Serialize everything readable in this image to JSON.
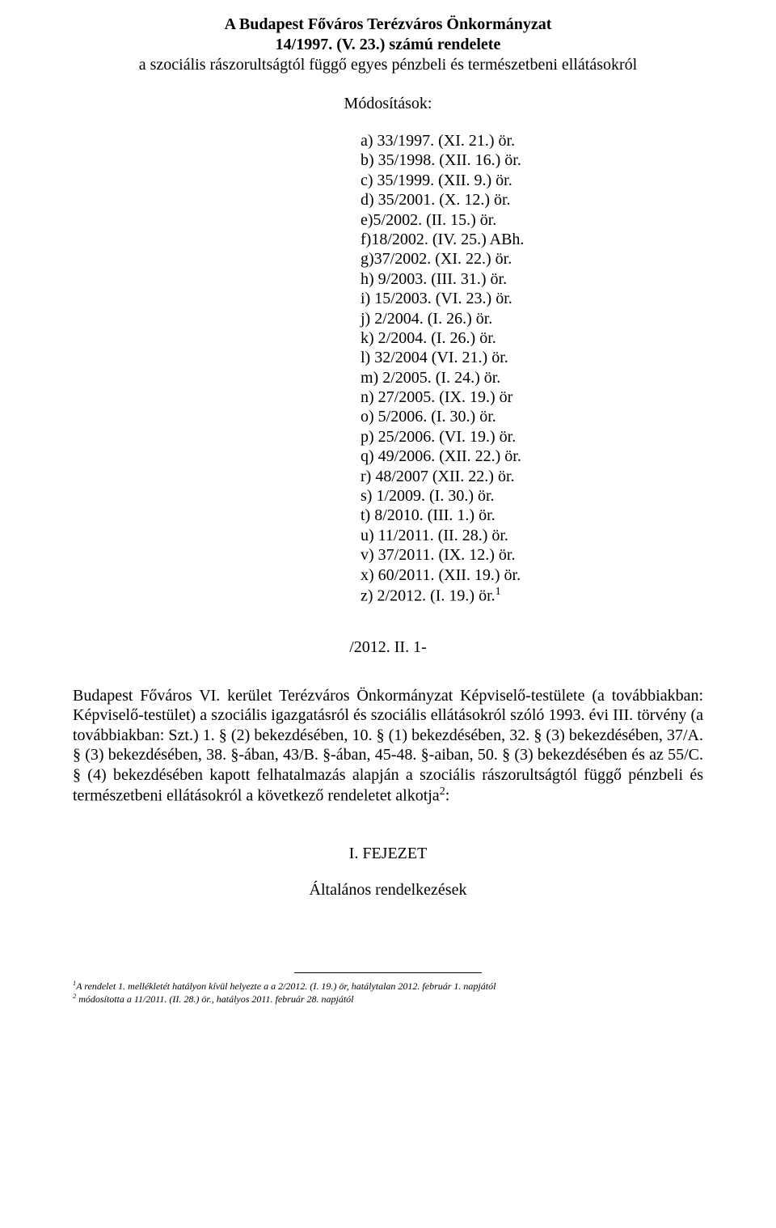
{
  "title_bold_line1": "A Budapest Főváros Terézváros Önkormányzat",
  "title_bold_line2": "14/1997. (V. 23.) számú rendelete",
  "title_normal_line": "a szociális rászorultságtól függő egyes pénzbeli és természetbeni ellátásokról",
  "modositasok_label": "Módosítások:",
  "amendments": [
    "a) 33/1997. (XI. 21.) ör.",
    "b) 35/1998. (XII. 16.) ör.",
    "c) 35/1999. (XII. 9.) ör.",
    "d) 35/2001. (X. 12.) ör.",
    "e)5/2002. (II. 15.) ör.",
    "f)18/2002. (IV. 25.) ABh.",
    "g)37/2002. (XI. 22.) ör.",
    "h) 9/2003. (III. 31.) ör.",
    "i) 15/2003. (VI. 23.) ör.",
    "j) 2/2004. (I. 26.) ör.",
    "k) 2/2004. (I. 26.) ör.",
    "l) 32/2004 (VI. 21.) ör.",
    "m) 2/2005. (I. 24.) ör.",
    "n) 27/2005. (IX. 19.) ör",
    "o) 5/2006. (I. 30.) ör.",
    "p) 25/2006. (VI. 19.) ör.",
    "q) 49/2006. (XII. 22.) ör.",
    "r) 48/2007 (XII. 22.) ör.",
    "s) 1/2009. (I. 30.) ör.",
    "t) 8/2010. (III. 1.) ör.",
    "u) 11/2011. (II. 28.) ör.",
    "v) 37/2011. (IX. 12.) ör.",
    "x) 60/2011. (XII. 19.) ör."
  ],
  "amendment_z_prefix": "z) 2/2012. (I. 19.) ör.",
  "amendment_z_sup": "1",
  "effective_line": "/2012. II. 1-",
  "paragraph_prefix": "Budapest Főváros VI. kerület Terézváros Önkormányzat Képviselő-testülete (a továbbiakban: Képviselő-testület) a szociális igazgatásról és szociális ellátásokról szóló 1993. évi III. törvény (a továbbiakban: Szt.) 1. § (2) bekezdésében, 10. § (1) bekezdésében, 32. § (3) bekezdésében, 37/A. § (3) bekezdésében, 38. §-ában, 43/B. §-ában, 45-48. §-aiban, 50. § (3) bekezdésében és az 55/C. § (4) bekezdésében kapott felhatalmazás alapján a szociális rászorultságtól függő pénzbeli és természetbeni ellátásokról a következő rendeletet alkotja",
  "paragraph_sup": "2",
  "paragraph_suffix": ":",
  "chapter_label": "I. FEJEZET",
  "subchapter_label": "Általános rendelkezések",
  "footnote1_sup": "1",
  "footnote1_text": "A rendelet 1. mellékletét  hatályon kívül helyezte a a 2/2012. (I. 19.) ör, hatálytalan 2012. február 1. napjától",
  "footnote2_sup": "2",
  "footnote2_text": " módosította a 11/2011. (II. 28.) ör., hatályos 2011. február 28. napjától"
}
